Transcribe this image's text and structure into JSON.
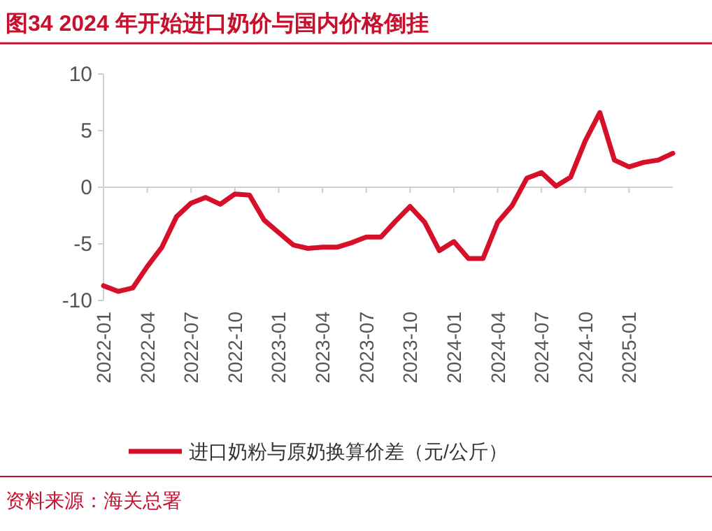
{
  "chart_data": {
    "type": "line",
    "title": "图34  2024 年开始进口奶价与国内价格倒挂",
    "categories": [
      "2022-01",
      null,
      null,
      "2022-04",
      null,
      null,
      "2022-07",
      null,
      null,
      "2022-10",
      null,
      null,
      "2023-01",
      null,
      null,
      "2023-04",
      null,
      null,
      "2023-07",
      null,
      null,
      "2023-10",
      null,
      null,
      "2024-01",
      null,
      null,
      "2024-04",
      null,
      null,
      "2024-07",
      null,
      null,
      "2024-10",
      null,
      null,
      "2025-01",
      null,
      null,
      null
    ],
    "series": [
      {
        "name": "进口奶粉与原奶换算价差（元/公斤）",
        "color": "#d7102a",
        "values": [
          -8.7,
          -9.2,
          -8.9,
          -7.0,
          -5.3,
          -2.6,
          -1.4,
          -0.9,
          -1.5,
          -0.6,
          -0.7,
          -2.9,
          -4.0,
          -5.1,
          -5.4,
          -5.3,
          -5.3,
          -4.9,
          -4.4,
          -4.4,
          -3.0,
          -1.7,
          -3.1,
          -5.6,
          -4.8,
          -6.3,
          -6.3,
          -3.1,
          -1.6,
          0.8,
          1.3,
          0.1,
          0.9,
          4.1,
          6.6,
          2.4,
          1.8,
          2.2,
          2.4,
          3.0
        ]
      }
    ],
    "ylim": [
      -10,
      10
    ],
    "yticks": [
      -10,
      -5,
      0,
      5,
      10
    ],
    "legend": "bottom",
    "annotations": [
      "资料来源：海关总署"
    ]
  }
}
